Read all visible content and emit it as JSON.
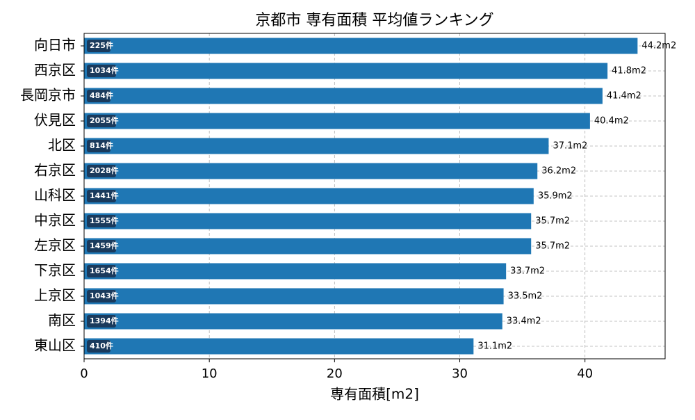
{
  "chart_data": {
    "type": "barh",
    "title": "京都市 専有面積 平均値ランキング",
    "xlabel": "専有面積[m2]",
    "categories": [
      "向日市",
      "西京区",
      "長岡京市",
      "伏見区",
      "北区",
      "右京区",
      "山科区",
      "中京区",
      "左京区",
      "下京区",
      "上京区",
      "南区",
      "東山区"
    ],
    "values": [
      44.2,
      41.8,
      41.4,
      40.4,
      37.1,
      36.2,
      35.9,
      35.7,
      35.7,
      33.7,
      33.5,
      33.4,
      31.1
    ],
    "value_labels": [
      "44.2m2",
      "41.8m2",
      "41.4m2",
      "40.4m2",
      "37.1m2",
      "36.2m2",
      "35.9m2",
      "35.7m2",
      "35.7m2",
      "33.7m2",
      "33.5m2",
      "33.4m2",
      "31.1m2"
    ],
    "bar_labels": [
      "225件",
      "1034件",
      "484件",
      "2055件",
      "814件",
      "2028件",
      "1441件",
      "1555件",
      "1459件",
      "1654件",
      "1043件",
      "1394件",
      "410件"
    ],
    "color": "#1f77b4",
    "xlim": [
      0,
      46.4
    ],
    "xticks": [
      0,
      10,
      20,
      30,
      40
    ],
    "grid": true
  }
}
